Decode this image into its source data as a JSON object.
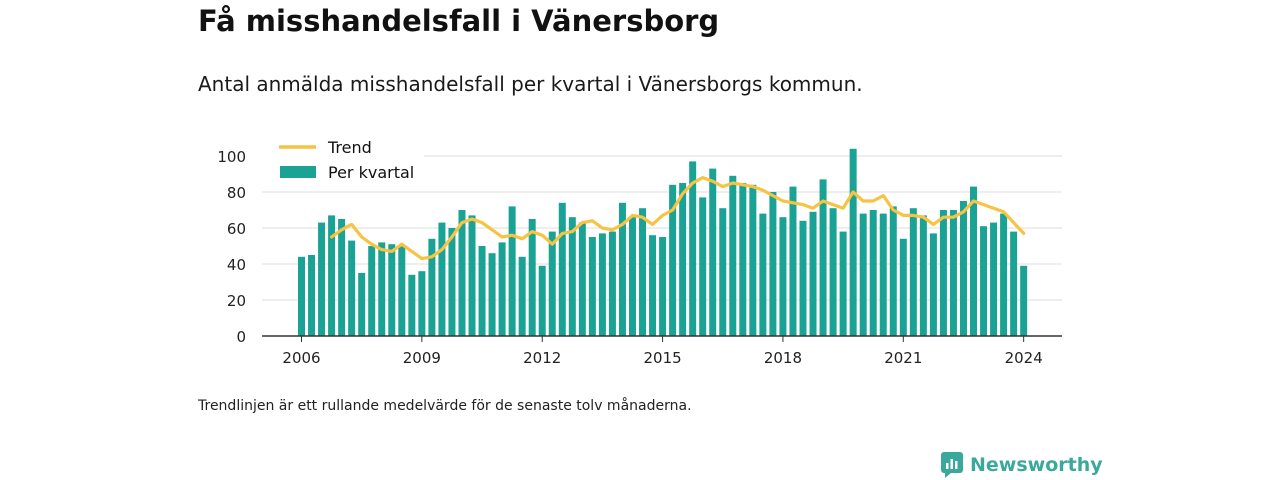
{
  "header": {
    "title": "Få misshandelsfall i Vänersborg",
    "subtitle": "Antal anmälda misshandelsfall per kvartal i Vänersborgs kommun."
  },
  "footnote": "Trendlinjen är ett rullande medelvärde för de senaste tolv månaderna.",
  "brand": {
    "name": "Newsworthy",
    "icon": "newsworthy-logo-icon"
  },
  "colors": {
    "bar": "#1aa394",
    "trend": "#f6c343",
    "grid": "#dddddd",
    "axis": "#333333",
    "brand": "#3aa89b"
  },
  "chart_data": {
    "type": "bar",
    "start_year": 2006,
    "quarters_per_year": 4,
    "x_ticks": [
      "2006",
      "2009",
      "2012",
      "2015",
      "2018",
      "2021",
      "2024"
    ],
    "y_ticks": [
      0,
      20,
      40,
      60,
      80,
      100
    ],
    "ylim": [
      0,
      105
    ],
    "legend": {
      "position": "top-left",
      "entries": [
        "Trend",
        "Per kvartal"
      ]
    },
    "grid": true,
    "series": [
      {
        "name": "Per kvartal",
        "type": "bar",
        "values": [
          44,
          45,
          63,
          67,
          65,
          53,
          35,
          50,
          52,
          51,
          50,
          34,
          36,
          54,
          63,
          60,
          70,
          67,
          50,
          46,
          52,
          72,
          44,
          65,
          39,
          58,
          74,
          66,
          63,
          55,
          57,
          58,
          74,
          66,
          71,
          56,
          55,
          84,
          85,
          97,
          77,
          93,
          71,
          89,
          85,
          84,
          68,
          80,
          66,
          83,
          64,
          69,
          87,
          71,
          58,
          104,
          68,
          70,
          68,
          72,
          54,
          71,
          67,
          57,
          70,
          70,
          75,
          83,
          61,
          63,
          68,
          58,
          39
        ]
      },
      {
        "name": "Trend",
        "type": "line",
        "values": [
          null,
          null,
          null,
          55,
          59,
          62,
          55,
          51,
          48,
          47,
          51,
          47,
          43,
          44,
          48,
          55,
          63,
          65,
          63,
          59,
          55,
          56,
          54,
          58,
          56,
          51,
          57,
          58,
          63,
          64,
          60,
          59,
          62,
          67,
          66,
          62,
          67,
          70,
          79,
          85,
          88,
          86,
          83,
          85,
          84,
          83,
          81,
          78,
          75,
          74,
          73,
          71,
          75,
          73,
          71,
          80,
          75,
          75,
          78,
          70,
          67,
          67,
          66,
          62,
          66,
          66,
          69,
          75,
          73,
          71,
          69,
          63,
          57
        ]
      }
    ]
  }
}
